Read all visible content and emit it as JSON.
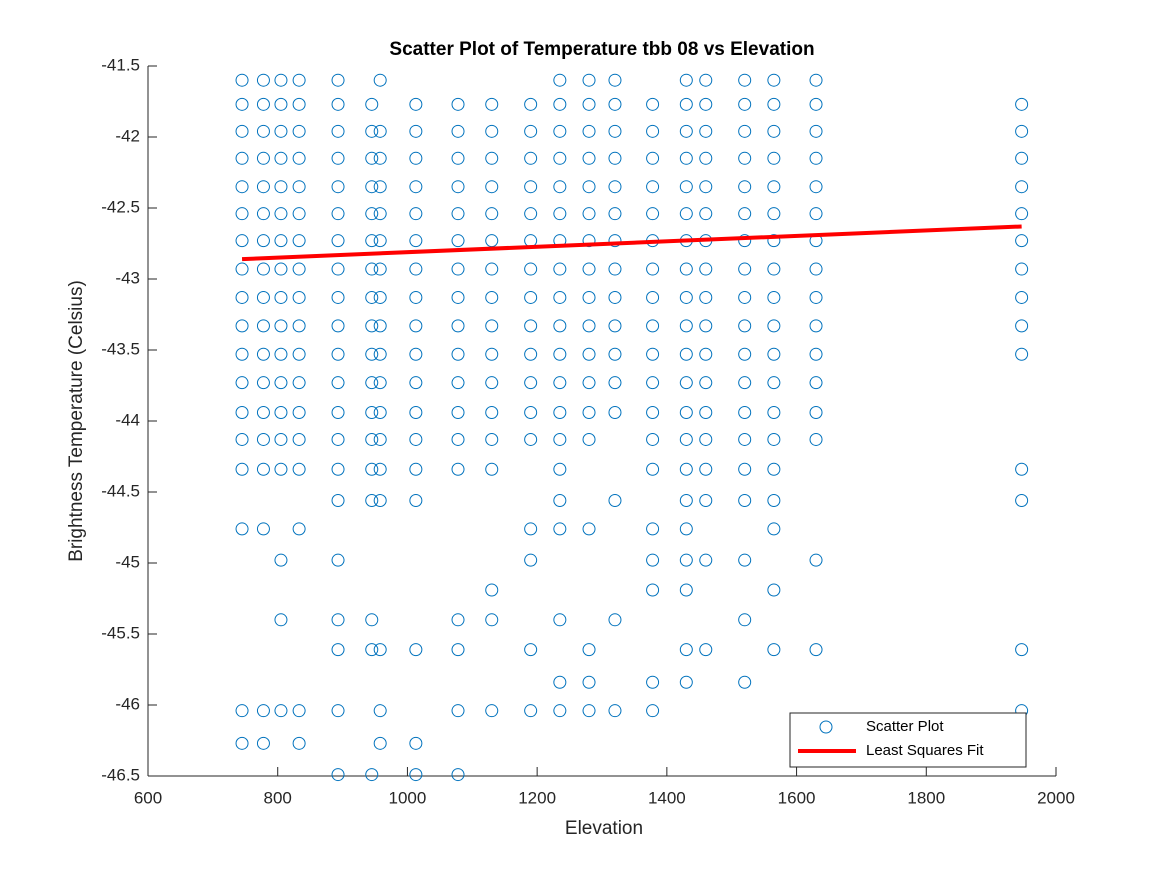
{
  "chart_data": {
    "type": "scatter",
    "title": "Scatter Plot of Temperature tbb 08 vs Elevation",
    "x_label": "Elevation",
    "y_label": "Brightness Temperature (Celsius)",
    "xlim": [
      600,
      2000
    ],
    "xticks": [
      600,
      800,
      1000,
      1200,
      1400,
      1600,
      1800,
      2000
    ],
    "ylim": [
      -46.5,
      -41.5
    ],
    "yticks": [
      -41.5,
      -42,
      -42.5,
      -43,
      -43.5,
      -44,
      -44.5,
      -45,
      -45.5,
      -46,
      -46.5
    ],
    "legend": "southeast",
    "series": [
      {
        "name": "Scatter Plot",
        "color": "#0072bd",
        "mode": "markers",
        "x": [
          745,
          745,
          745,
          745,
          745,
          745,
          745,
          745,
          745,
          745,
          745,
          745,
          745,
          745,
          745,
          745,
          745,
          745,
          778,
          778,
          778,
          778,
          778,
          778,
          778,
          778,
          778,
          778,
          778,
          778,
          778,
          778,
          778,
          778,
          778,
          778,
          805,
          805,
          805,
          805,
          805,
          805,
          805,
          805,
          805,
          805,
          805,
          805,
          805,
          805,
          805,
          805,
          805,
          805,
          833,
          833,
          833,
          833,
          833,
          833,
          833,
          833,
          833,
          833,
          833,
          833,
          833,
          833,
          833,
          833,
          833,
          833,
          893,
          893,
          893,
          893,
          893,
          893,
          893,
          893,
          893,
          893,
          893,
          893,
          893,
          893,
          893,
          893,
          893,
          893,
          893,
          893,
          893,
          945,
          945,
          945,
          945,
          945,
          945,
          945,
          945,
          945,
          945,
          945,
          945,
          945,
          945,
          945,
          945,
          945,
          945,
          958,
          958,
          958,
          958,
          958,
          958,
          958,
          958,
          958,
          958,
          958,
          958,
          958,
          958,
          958,
          958,
          958,
          958,
          1013,
          1013,
          1013,
          1013,
          1013,
          1013,
          1013,
          1013,
          1013,
          1013,
          1013,
          1013,
          1013,
          1013,
          1013,
          1013,
          1013,
          1013,
          1078,
          1078,
          1078,
          1078,
          1078,
          1078,
          1078,
          1078,
          1078,
          1078,
          1078,
          1078,
          1078,
          1078,
          1078,
          1078,
          1078,
          1078,
          1130,
          1130,
          1130,
          1130,
          1130,
          1130,
          1130,
          1130,
          1130,
          1130,
          1130,
          1130,
          1130,
          1130,
          1130,
          1130,
          1130,
          1190,
          1190,
          1190,
          1190,
          1190,
          1190,
          1190,
          1190,
          1190,
          1190,
          1190,
          1190,
          1190,
          1190,
          1190,
          1190,
          1190,
          1235,
          1235,
          1235,
          1235,
          1235,
          1235,
          1235,
          1235,
          1235,
          1235,
          1235,
          1235,
          1235,
          1235,
          1235,
          1235,
          1235,
          1235,
          1235,
          1235,
          1280,
          1280,
          1280,
          1280,
          1280,
          1280,
          1280,
          1280,
          1280,
          1280,
          1280,
          1280,
          1280,
          1280,
          1280,
          1280,
          1280,
          1280,
          1320,
          1320,
          1320,
          1320,
          1320,
          1320,
          1320,
          1320,
          1320,
          1320,
          1320,
          1320,
          1320,
          1320,
          1320,
          1320,
          1378,
          1378,
          1378,
          1378,
          1378,
          1378,
          1378,
          1378,
          1378,
          1378,
          1378,
          1378,
          1378,
          1378,
          1378,
          1378,
          1378,
          1378,
          1378,
          1430,
          1430,
          1430,
          1430,
          1430,
          1430,
          1430,
          1430,
          1430,
          1430,
          1430,
          1430,
          1430,
          1430,
          1430,
          1430,
          1430,
          1430,
          1430,
          1430,
          1430,
          1460,
          1460,
          1460,
          1460,
          1460,
          1460,
          1460,
          1460,
          1460,
          1460,
          1460,
          1460,
          1460,
          1460,
          1460,
          1460,
          1460,
          1460,
          1520,
          1520,
          1520,
          1520,
          1520,
          1520,
          1520,
          1520,
          1520,
          1520,
          1520,
          1520,
          1520,
          1520,
          1520,
          1520,
          1520,
          1520,
          1520,
          1565,
          1565,
          1565,
          1565,
          1565,
          1565,
          1565,
          1565,
          1565,
          1565,
          1565,
          1565,
          1565,
          1565,
          1565,
          1565,
          1565,
          1565,
          1565,
          1630,
          1630,
          1630,
          1630,
          1630,
          1630,
          1630,
          1630,
          1630,
          1630,
          1630,
          1630,
          1630,
          1630,
          1630,
          1630,
          1947,
          1947,
          1947,
          1947,
          1947,
          1947,
          1947,
          1947,
          1947,
          1947,
          1947,
          1947,
          1947,
          1947
        ],
        "values": [
          -41.6,
          -41.77,
          -41.96,
          -42.15,
          -42.35,
          -42.54,
          -42.73,
          -42.93,
          -43.13,
          -43.33,
          -43.53,
          -43.73,
          -43.94,
          -44.13,
          -44.34,
          -44.76,
          -46.04,
          -46.27,
          -41.6,
          -41.77,
          -41.96,
          -42.15,
          -42.35,
          -42.54,
          -42.73,
          -42.93,
          -43.13,
          -43.33,
          -43.53,
          -43.73,
          -43.94,
          -44.13,
          -44.34,
          -44.76,
          -46.04,
          -46.27,
          -41.6,
          -41.77,
          -41.96,
          -42.15,
          -42.35,
          -42.54,
          -42.73,
          -42.93,
          -43.13,
          -43.33,
          -43.53,
          -43.73,
          -43.94,
          -44.13,
          -44.34,
          -44.98,
          -45.4,
          -46.04,
          -41.6,
          -41.77,
          -41.96,
          -42.15,
          -42.35,
          -42.54,
          -42.73,
          -42.93,
          -43.13,
          -43.33,
          -43.53,
          -43.73,
          -43.94,
          -44.13,
          -44.34,
          -44.76,
          -46.04,
          -46.27,
          -41.6,
          -41.77,
          -41.96,
          -42.15,
          -42.35,
          -42.54,
          -42.73,
          -42.93,
          -43.13,
          -43.33,
          -43.53,
          -43.73,
          -43.94,
          -44.13,
          -44.34,
          -44.56,
          -44.98,
          -45.4,
          -45.61,
          -46.04,
          -46.49,
          -41.77,
          -41.96,
          -42.15,
          -42.35,
          -42.54,
          -42.73,
          -42.93,
          -43.13,
          -43.33,
          -43.53,
          -43.73,
          -43.94,
          -44.13,
          -44.34,
          -44.56,
          -45.4,
          -45.61,
          -46.49,
          -41.6,
          -41.96,
          -42.15,
          -42.35,
          -42.54,
          -42.73,
          -42.93,
          -43.13,
          -43.33,
          -43.53,
          -43.73,
          -43.94,
          -44.13,
          -44.34,
          -44.56,
          -45.61,
          -46.04,
          -46.27,
          -41.77,
          -41.96,
          -42.15,
          -42.35,
          -42.54,
          -42.73,
          -42.93,
          -43.13,
          -43.33,
          -43.53,
          -43.73,
          -43.94,
          -44.13,
          -44.34,
          -44.56,
          -45.61,
          -46.27,
          -46.49,
          -41.77,
          -41.96,
          -42.15,
          -42.35,
          -42.54,
          -42.73,
          -42.93,
          -43.13,
          -43.33,
          -43.53,
          -43.73,
          -43.94,
          -44.13,
          -44.34,
          -45.4,
          -45.61,
          -46.04,
          -46.49,
          -41.77,
          -41.96,
          -42.15,
          -42.35,
          -42.54,
          -42.73,
          -42.93,
          -43.13,
          -43.33,
          -43.53,
          -43.73,
          -43.94,
          -44.13,
          -44.34,
          -45.19,
          -45.4,
          -46.04,
          -41.77,
          -41.96,
          -42.15,
          -42.35,
          -42.54,
          -42.73,
          -42.93,
          -43.13,
          -43.33,
          -43.53,
          -43.73,
          -43.94,
          -44.13,
          -44.76,
          -44.98,
          -45.61,
          -46.04,
          -41.6,
          -41.77,
          -41.96,
          -42.15,
          -42.35,
          -42.54,
          -42.73,
          -42.93,
          -43.13,
          -43.33,
          -43.53,
          -43.73,
          -43.94,
          -44.13,
          -44.34,
          -44.56,
          -44.76,
          -45.4,
          -45.84,
          -46.04,
          -41.6,
          -41.77,
          -41.96,
          -42.15,
          -42.35,
          -42.54,
          -42.73,
          -42.93,
          -43.13,
          -43.33,
          -43.53,
          -43.73,
          -43.94,
          -44.13,
          -44.76,
          -45.61,
          -45.84,
          -46.04,
          -41.6,
          -41.77,
          -41.96,
          -42.15,
          -42.35,
          -42.54,
          -42.73,
          -42.93,
          -43.13,
          -43.33,
          -43.53,
          -43.73,
          -43.94,
          -44.56,
          -45.4,
          -46.04,
          -41.77,
          -41.96,
          -42.15,
          -42.35,
          -42.54,
          -42.73,
          -42.93,
          -43.13,
          -43.33,
          -43.53,
          -43.73,
          -43.94,
          -44.13,
          -44.34,
          -44.76,
          -44.98,
          -45.19,
          -45.84,
          -46.04,
          -41.6,
          -41.77,
          -41.96,
          -42.15,
          -42.35,
          -42.54,
          -42.73,
          -42.93,
          -43.13,
          -43.33,
          -43.53,
          -43.73,
          -43.94,
          -44.13,
          -44.34,
          -44.56,
          -44.76,
          -44.98,
          -45.19,
          -45.61,
          -45.84,
          -41.6,
          -41.77,
          -41.96,
          -42.15,
          -42.35,
          -42.54,
          -42.73,
          -42.93,
          -43.13,
          -43.33,
          -43.53,
          -43.73,
          -43.94,
          -44.13,
          -44.34,
          -44.56,
          -44.98,
          -45.61,
          -41.6,
          -41.77,
          -41.96,
          -42.15,
          -42.35,
          -42.54,
          -42.73,
          -42.93,
          -43.13,
          -43.33,
          -43.53,
          -43.73,
          -43.94,
          -44.13,
          -44.34,
          -44.56,
          -44.98,
          -45.4,
          -45.84,
          -41.6,
          -41.77,
          -41.96,
          -42.15,
          -42.35,
          -42.54,
          -42.73,
          -42.93,
          -43.13,
          -43.33,
          -43.53,
          -43.73,
          -43.94,
          -44.13,
          -44.34,
          -44.56,
          -44.76,
          -45.19,
          -45.61,
          -41.6,
          -41.77,
          -41.96,
          -42.15,
          -42.35,
          -42.54,
          -42.73,
          -42.93,
          -43.13,
          -43.33,
          -43.53,
          -43.73,
          -43.94,
          -44.13,
          -44.98,
          -45.61,
          -41.77,
          -41.96,
          -42.15,
          -42.35,
          -42.54,
          -42.73,
          -42.93,
          -43.13,
          -43.33,
          -43.53,
          -44.34,
          -44.56,
          -45.61,
          -46.04
        ]
      },
      {
        "name": "Least Squares Fit",
        "color": "#ff0000",
        "mode": "line",
        "x": [
          745,
          1947
        ],
        "values": [
          -42.86,
          -42.63
        ]
      }
    ]
  }
}
